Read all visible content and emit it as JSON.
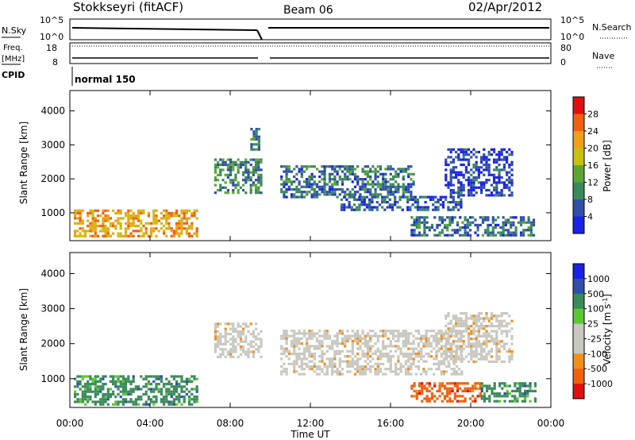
{
  "header": {
    "station": "Stokkseyri (fitACF)",
    "beam": "Beam 06",
    "date": "02/Apr/2012"
  },
  "labels": {
    "nsky": "N.Sky",
    "nsearch": "N.Search",
    "freq": "Freq.",
    "mhz": "[MHz]",
    "nave": "Nave",
    "cpid": "CPID",
    "cpid_value": "normal 150"
  },
  "axis_labels": {
    "nsky_top": "10^5",
    "nsky_bottom": "10^0",
    "nsearch_top": "10^5",
    "nsearch_bottom": "10^0",
    "freq_top": "18",
    "freq_bottom": "8",
    "nave_top": "80",
    "nave_bottom": "0"
  },
  "colors": {
    "power_scale": [
      "#1a22e6",
      "#2f4fa8",
      "#3a8a5a",
      "#5aa832",
      "#c8c010",
      "#f0a018",
      "#f06010",
      "#e01010"
    ],
    "velocity_scale": [
      "#e01010",
      "#f06010",
      "#f09018",
      "#c8c8c0",
      "#c8c8c0",
      "#5ac832",
      "#3a8a5a",
      "#2f4fa8",
      "#1a22e6"
    ]
  },
  "chart_data": [
    {
      "type": "heatmap",
      "name": "power",
      "title": "",
      "xlabel": "",
      "ylabel": "Slant Range [km]",
      "colorbar_label": "Power [dB]",
      "colorbar_ticks": [
        "4",
        "8",
        "12",
        "16",
        "20",
        "24",
        "28"
      ],
      "x_ticks": [
        "00:00",
        "04:00",
        "08:00",
        "12:00",
        "16:00",
        "20:00",
        "00:00"
      ],
      "y_ticks": [
        "1000",
        "2000",
        "3000",
        "4000"
      ],
      "xlim": [
        0,
        24
      ],
      "ylim": [
        180,
        4600
      ],
      "features": [
        {
          "t0": 0.2,
          "t1": 6.3,
          "r0": 300,
          "r1": 1100,
          "level": 24
        },
        {
          "t0": 7.2,
          "t1": 9.6,
          "r0": 1600,
          "r1": 2600,
          "level": 12
        },
        {
          "t0": 9.0,
          "t1": 9.4,
          "r0": 2900,
          "r1": 3500,
          "level": 10
        },
        {
          "t0": 10.5,
          "t1": 17.2,
          "r0": 1500,
          "r1": 2400,
          "level": 10
        },
        {
          "t0": 13.5,
          "t1": 19.5,
          "r0": 1100,
          "r1": 1500,
          "level": 8
        },
        {
          "t0": 18.7,
          "t1": 22.0,
          "r0": 1500,
          "r1": 2900,
          "level": 6
        },
        {
          "t0": 17.0,
          "t1": 23.2,
          "r0": 350,
          "r1": 900,
          "level": 10
        }
      ]
    },
    {
      "type": "heatmap",
      "name": "velocity",
      "title": "",
      "xlabel": "Time UT",
      "ylabel": "Slant Range [km]",
      "colorbar_label": "Velocity [m s^-1]",
      "colorbar_ticks": [
        "-1000",
        "-500",
        "-100",
        "-25",
        "25",
        "100",
        "500",
        "1000"
      ],
      "x_ticks": [
        "00:00",
        "04:00",
        "08:00",
        "12:00",
        "16:00",
        "20:00",
        "00:00"
      ],
      "y_ticks": [
        "1000",
        "2000",
        "3000",
        "4000"
      ],
      "xlim": [
        0,
        24
      ],
      "ylim": [
        180,
        4600
      ],
      "features": [
        {
          "t0": 0.2,
          "t1": 6.3,
          "r0": 300,
          "r1": 1100,
          "velocity": 100
        },
        {
          "t0": 7.2,
          "t1": 9.6,
          "r0": 1600,
          "r1": 2600,
          "velocity": 0
        },
        {
          "t0": 10.5,
          "t1": 19.5,
          "r0": 1100,
          "r1": 2400,
          "velocity": 0
        },
        {
          "t0": 18.7,
          "t1": 22.0,
          "r0": 1500,
          "r1": 2900,
          "velocity": 0
        },
        {
          "t0": 17.0,
          "t1": 20.5,
          "r0": 350,
          "r1": 900,
          "velocity": -500
        },
        {
          "t0": 20.5,
          "t1": 23.2,
          "r0": 350,
          "r1": 900,
          "velocity": 100
        }
      ]
    }
  ]
}
